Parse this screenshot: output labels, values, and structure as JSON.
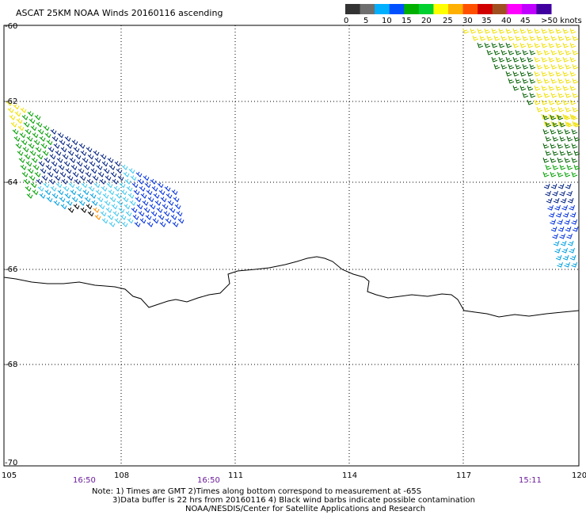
{
  "title": "ASCAT 25KM NOAA Winds 20160116 ascending",
  "legend": {
    "labels": [
      "0",
      "5",
      "10",
      "15",
      "20",
      "25",
      "30",
      "35",
      "40",
      "45",
      ">50 knots"
    ],
    "colors": [
      "#333333",
      "#6e6e6e",
      "#00b0ff",
      "#0050ff",
      "#00b000",
      "#00d030",
      "#ffff00",
      "#ffb000",
      "#ff5000",
      "#d00000",
      "#a05020",
      "#ff00ff",
      "#c000ff",
      "#4000a0"
    ]
  },
  "lat_labels": [
    "-60",
    "-62",
    "-64",
    "-66",
    "-68",
    "-70"
  ],
  "lon_labels": [
    "105",
    "108",
    "111",
    "114",
    "117",
    "120"
  ],
  "time_labels": [
    "16:50",
    "16:50",
    "15:11"
  ],
  "notes": {
    "line1": "Note: 1) Times are GMT 2)Times along bottom correspond to measurement at -65S",
    "line2": "3)Data buffer is 22 hrs from 20160116 4) Black wind barbs indicate possible contamination",
    "line3": "NOAA/NESDIS/Center for Satellite Applications and Research"
  },
  "wind_colors": {
    "yellow": "#f0e000",
    "green": "#00a000",
    "dkgreen": "#006000",
    "blue": "#0030e0",
    "navy": "#002080",
    "cyan": "#00a0e0",
    "lightcyan": "#40c8f0",
    "orange": "#ff9000",
    "black": "#000000"
  }
}
